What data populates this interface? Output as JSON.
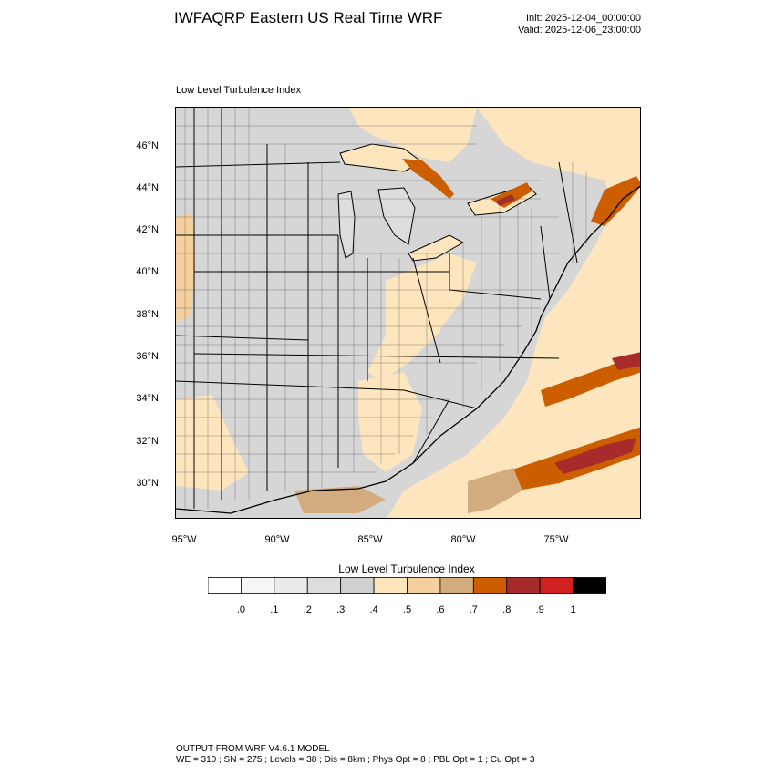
{
  "header": {
    "title": "IWFAQRP Eastern US Real Time WRF",
    "init": "Init: 2025-12-04_00:00:00",
    "valid": "Valid: 2025-12-06_23:00:00"
  },
  "panel": {
    "title": "Low Level Turbulence Index"
  },
  "map": {
    "lat_ticks": [
      "46°N",
      "44°N",
      "42°N",
      "40°N",
      "38°N",
      "36°N",
      "34°N",
      "32°N",
      "30°N"
    ],
    "lon_ticks": [
      "95°W",
      "90°W",
      "85°W",
      "80°W",
      "75°W"
    ],
    "colors": {
      "land_base": "#dcdcdc",
      "water_base": "#fbe8c8",
      "boundaries": "#000000"
    }
  },
  "colorbar": {
    "title": "Low Level Turbulence Index",
    "tick_labels": [
      ".0",
      ".1",
      ".2",
      ".3",
      ".4",
      ".5",
      ".6",
      ".7",
      ".8",
      ".9",
      "1"
    ],
    "colors": [
      "#ffffff",
      "#f6f6f6",
      "#ebebeb",
      "#dddddd",
      "#d0d0d0",
      "#fde6bd",
      "#f5d09e",
      "#d2ac7e",
      "#cc5e00",
      "#a82b2b",
      "#d12020",
      "#000000"
    ]
  },
  "footer": {
    "line1": "OUTPUT FROM WRF V4.6.1 MODEL",
    "line2": "WE = 310 ; SN = 275 ; Levels = 38 ; Dis = 8km ; Phys Opt = 8 ; PBL Opt = 1 ; Cu Opt = 3"
  }
}
